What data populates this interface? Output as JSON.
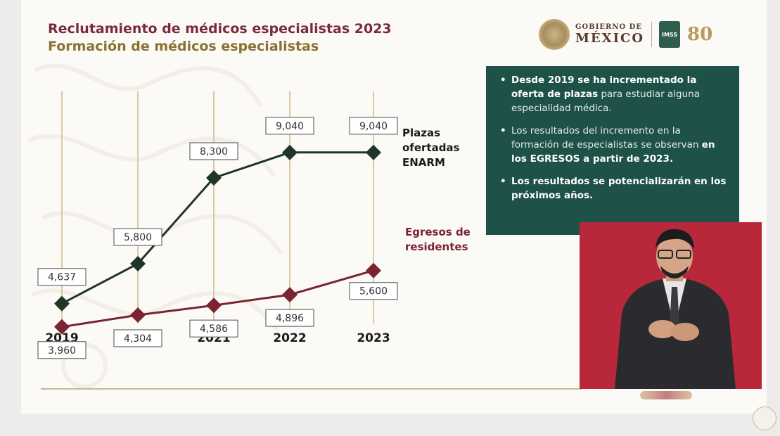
{
  "title": "Reclutamiento de médicos especialistas 2023",
  "subtitle": "Formación de médicos especialistas",
  "logos": {
    "gobierno_line1": "GOBIERNO DE",
    "gobierno_line2": "MÉXICO",
    "imss": "IMSS",
    "anniversary": "80"
  },
  "panel": {
    "bullet1_bold": "Desde 2019 se ha incrementado la oferta de plazas",
    "bullet1_rest": " para estudiar alguna especialidad médica.",
    "bullet2_rest": "Los resultados del incremento en la formación de especialistas se observan ",
    "bullet2_bold": "en los EGRESOS a partir de 2023.",
    "bullet3_bold": "Los resultados se potencializarán en los próximos años."
  },
  "colors": {
    "plazas": "#1f3527",
    "egresos": "#7b2330",
    "title": "#7b2a3a",
    "subtitle": "#8a7230",
    "panel": "#1e5148",
    "interpreter_bg": "#b8283a"
  },
  "chart_data": {
    "type": "line",
    "categories": [
      "2019",
      "2020",
      "2021",
      "2022",
      "2023"
    ],
    "series": [
      {
        "name": "Plazas ofertadas ENARM",
        "values": [
          4637,
          5800,
          8300,
          9040,
          9040
        ],
        "labels": [
          "4,637",
          "5,800",
          "8,300",
          "9,040",
          "9,040"
        ]
      },
      {
        "name": "Egresos de residentes",
        "values": [
          3960,
          4304,
          4586,
          4896,
          5600
        ],
        "labels": [
          "3,960",
          "4,304",
          "4,586",
          "4,896",
          "5,600"
        ]
      }
    ],
    "series_label_lines": [
      [
        "Plazas",
        "ofertadas",
        "ENARM"
      ],
      [
        "Egresos de",
        "residentes"
      ]
    ],
    "marker": "diamond",
    "grid": "vertical"
  }
}
